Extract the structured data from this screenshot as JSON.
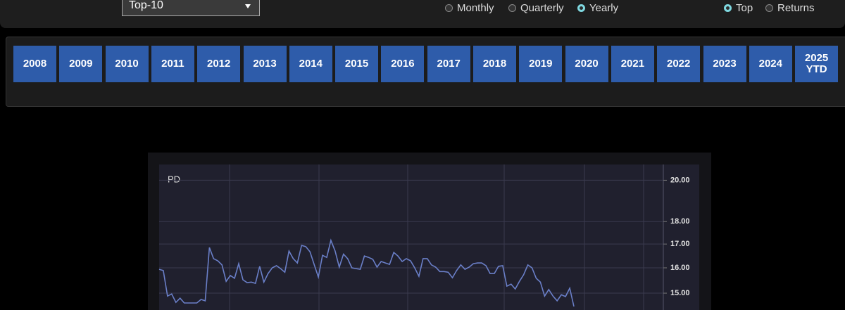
{
  "header": {
    "dropdown": "Top-10",
    "frequency_options": [
      {
        "label": "Monthly",
        "checked": false
      },
      {
        "label": "Quarterly",
        "checked": false
      },
      {
        "label": "Yearly",
        "checked": true
      }
    ],
    "view_options": [
      {
        "label": "Top",
        "checked": true
      },
      {
        "label": "Returns",
        "checked": false
      }
    ]
  },
  "years": [
    "2008",
    "2009",
    "2010",
    "2011",
    "2012",
    "2013",
    "2014",
    "2015",
    "2016",
    "2017",
    "2018",
    "2019",
    "2020",
    "2021",
    "2022",
    "2023",
    "2024",
    "2025 YTD"
  ],
  "chart_data": {
    "type": "line",
    "series_label": "PD",
    "color": "#6a7fc8",
    "log_scale": true,
    "grid": true,
    "ylim": [
      14.37,
      20.82
    ],
    "yticks": [
      {
        "value": 15,
        "label": "15.00"
      },
      {
        "value": 16,
        "label": "16.00"
      },
      {
        "value": 17,
        "label": "17.00"
      },
      {
        "value": 18,
        "label": "18.00"
      },
      {
        "value": 20,
        "label": "20.00"
      }
    ],
    "values": [
      15.94,
      15.89,
      14.89,
      14.97,
      14.65,
      14.81,
      14.63,
      14.63,
      14.63,
      14.63,
      14.76,
      14.71,
      16.85,
      16.38,
      16.29,
      16.12,
      15.46,
      15.69,
      15.58,
      16.17,
      15.52,
      15.41,
      15.43,
      15.38,
      16.06,
      15.43,
      15.77,
      16.0,
      16.09,
      15.97,
      15.82,
      16.7,
      16.38,
      16.2,
      16.94,
      16.89,
      16.67,
      16.14,
      15.63,
      16.52,
      16.43,
      17.16,
      16.7,
      16.03,
      16.57,
      16.38,
      16.0,
      15.97,
      15.94,
      16.49,
      16.43,
      16.35,
      16.03,
      16.26,
      16.2,
      16.14,
      16.64,
      16.49,
      16.26,
      16.38,
      16.29,
      16.0,
      15.66,
      16.38,
      16.38,
      16.12,
      16.03,
      15.85,
      15.85,
      15.82,
      15.6,
      15.89,
      16.12,
      15.94,
      16.03,
      16.17,
      16.2,
      16.2,
      16.09,
      15.77,
      15.77,
      16.06,
      16.09,
      15.27,
      15.35,
      15.16,
      15.46,
      15.72,
      16.12,
      16.0,
      15.58,
      15.43,
      14.89,
      15.14,
      14.89,
      14.71,
      14.94,
      14.87,
      15.19,
      14.5
    ]
  }
}
